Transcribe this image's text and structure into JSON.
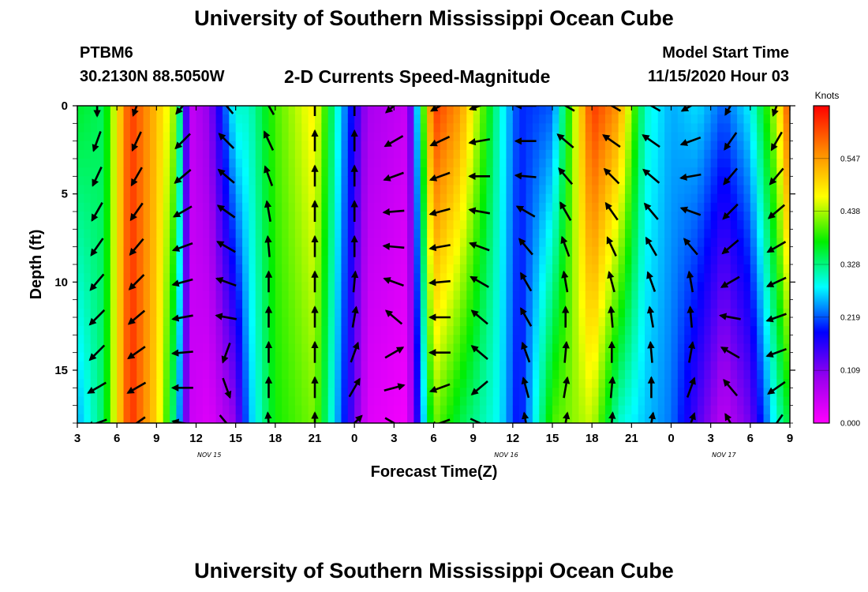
{
  "header": {
    "title": "University of Southern Mississippi Ocean Cube",
    "station": "PTBM6",
    "coords": "30.2130N 88.5050W",
    "subtitle": "2-D Currents Speed-Magnitude",
    "model_start_label": "Model Start Time",
    "model_start_value": "11/15/2020 Hour 03"
  },
  "footer": {
    "title": "University of Southern Mississippi Ocean Cube"
  },
  "chart_data": {
    "type": "heatmap",
    "xlabel": "Forecast Time(Z)",
    "ylabel": "Depth (ft)",
    "x_tick_labels": [
      "3",
      "6",
      "9",
      "12",
      "15",
      "18",
      "21",
      "0",
      "3",
      "6",
      "9",
      "12",
      "15",
      "18",
      "21",
      "0",
      "3",
      "6",
      "9"
    ],
    "x_range_hours": [
      3,
      57
    ],
    "day_labels": [
      {
        "label": "NOV 15",
        "hour": 13
      },
      {
        "label": "NOV 16",
        "hour": 35.5
      },
      {
        "label": "NOV 17",
        "hour": 52
      }
    ],
    "y_ticks": [
      0,
      5,
      10,
      15
    ],
    "y_tick_labels": [
      "0",
      "5",
      "10",
      "15"
    ],
    "ylim": [
      0,
      18
    ],
    "y_inverted": true,
    "colorbar": {
      "unit": "Knots",
      "ticks": [
        "0.547",
        "0.438",
        "0.328",
        "0.219",
        "0.109",
        "0.000"
      ],
      "range": [
        0,
        0.656
      ],
      "stops": [
        "#ff00ff",
        "#9900ee",
        "#0000ff",
        "#00ffff",
        "#00ee00",
        "#ffff00",
        "#ff8800",
        "#ff0000"
      ]
    },
    "speed_profile": [
      {
        "h": 3,
        "top": 0.36,
        "bot": 0.25
      },
      {
        "h": 5,
        "top": 0.34,
        "bot": 0.34
      },
      {
        "h": 7,
        "top": 0.62,
        "bot": 0.63
      },
      {
        "h": 9,
        "top": 0.52,
        "bot": 0.5
      },
      {
        "h": 10.5,
        "top": 0.42,
        "bot": 0.3
      },
      {
        "h": 11.5,
        "top": 0.05,
        "bot": 0.05
      },
      {
        "h": 13,
        "top": 0.1,
        "bot": 0.03
      },
      {
        "h": 15,
        "top": 0.3,
        "bot": 0.1
      },
      {
        "h": 16,
        "top": 0.3,
        "bot": 0.25
      },
      {
        "h": 18,
        "top": 0.4,
        "bot": 0.38
      },
      {
        "h": 21,
        "top": 0.48,
        "bot": 0.42
      },
      {
        "h": 23,
        "top": 0.26,
        "bot": 0.22
      },
      {
        "h": 25,
        "top": 0.08,
        "bot": 0.03
      },
      {
        "h": 28,
        "top": 0.05,
        "bot": 0.01
      },
      {
        "h": 30,
        "top": 0.62,
        "bot": 0.42
      },
      {
        "h": 32,
        "top": 0.55,
        "bot": 0.35
      },
      {
        "h": 35,
        "top": 0.3,
        "bot": 0.28
      },
      {
        "h": 36.5,
        "top": 0.2,
        "bot": 0.18
      },
      {
        "h": 39,
        "top": 0.22,
        "bot": 0.4
      },
      {
        "h": 42,
        "top": 0.62,
        "bot": 0.45
      },
      {
        "h": 44,
        "top": 0.55,
        "bot": 0.3
      },
      {
        "h": 46,
        "top": 0.3,
        "bot": 0.26
      },
      {
        "h": 48,
        "top": 0.25,
        "bot": 0.23
      },
      {
        "h": 50,
        "top": 0.27,
        "bot": 0.14
      },
      {
        "h": 52,
        "top": 0.22,
        "bot": 0.06
      },
      {
        "h": 54,
        "top": 0.28,
        "bot": 0.12
      },
      {
        "h": 56,
        "top": 0.45,
        "bot": 0.3
      },
      {
        "h": 57,
        "top": 0.62,
        "bot": 0.36
      }
    ],
    "vector_hours": [
      4.5,
      7.5,
      11,
      14.3,
      17.5,
      21,
      24,
      27,
      30.5,
      33.5,
      37,
      40,
      43.5,
      46.5,
      49.5,
      52.5,
      56
    ],
    "vector_depths": [
      0,
      2,
      4,
      6,
      8,
      10,
      12,
      14,
      16,
      18
    ],
    "vector_direction_deg": [
      [
        180,
        200,
        205,
        210,
        215,
        220,
        225,
        225,
        240,
        250
      ],
      [
        200,
        205,
        210,
        215,
        220,
        225,
        230,
        235,
        240,
        235
      ],
      [
        220,
        225,
        230,
        240,
        250,
        255,
        260,
        265,
        270,
        280
      ],
      [
        320,
        315,
        310,
        305,
        300,
        290,
        280,
        200,
        160,
        140
      ],
      [
        330,
        335,
        340,
        350,
        355,
        0,
        0,
        0,
        0,
        355
      ],
      [
        0,
        0,
        0,
        0,
        0,
        0,
        0,
        0,
        0,
        0
      ],
      [
        0,
        0,
        0,
        0,
        0,
        5,
        10,
        20,
        30,
        45
      ],
      [
        230,
        240,
        250,
        265,
        275,
        290,
        310,
        60,
        75,
        120
      ],
      [
        240,
        245,
        250,
        255,
        260,
        265,
        270,
        270,
        250,
        250
      ],
      [
        250,
        260,
        270,
        280,
        290,
        300,
        310,
        310,
        230,
        115
      ],
      [
        270,
        270,
        275,
        300,
        320,
        330,
        330,
        340,
        345,
        350
      ],
      [
        300,
        310,
        320,
        330,
        340,
        350,
        0,
        5,
        10,
        10
      ],
      [
        300,
        305,
        315,
        325,
        335,
        345,
        355,
        0,
        5,
        5
      ],
      [
        300,
        305,
        310,
        320,
        330,
        340,
        350,
        355,
        0,
        10
      ],
      [
        240,
        250,
        260,
        290,
        320,
        350,
        355,
        10,
        20,
        20
      ],
      [
        210,
        215,
        220,
        225,
        230,
        240,
        280,
        300,
        320,
        330
      ],
      [
        200,
        210,
        220,
        230,
        240,
        245,
        250,
        250,
        235,
        215
      ]
    ]
  }
}
